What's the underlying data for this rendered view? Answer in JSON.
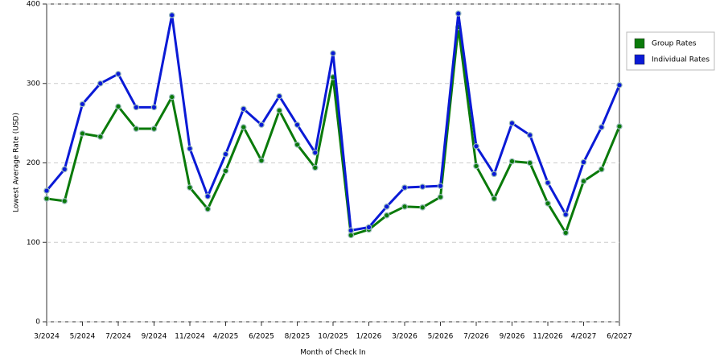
{
  "chart_data": {
    "type": "line",
    "x_label": "Month of Check In",
    "y_label": "Lowest Average Rate (USD)",
    "categories": [
      "3/2024",
      null,
      "5/2024",
      null,
      "7/2024",
      null,
      "9/2024",
      null,
      "11/2024",
      null,
      "4/2025",
      null,
      "6/2025",
      null,
      "8/2025",
      null,
      "10/2025",
      null,
      "1/2026",
      null,
      "3/2026",
      null,
      "5/2026",
      null,
      "7/2026",
      null,
      "9/2026",
      null,
      "11/2026",
      null,
      "4/2027",
      null,
      "6/2027"
    ],
    "series": [
      {
        "name": "Group Rates",
        "color": "#0a7a0a",
        "values": [
          155,
          152,
          237,
          233,
          271,
          243,
          243,
          283,
          169,
          142,
          190,
          245,
          203,
          266,
          223,
          194,
          308,
          109,
          116,
          134,
          145,
          144,
          157,
          371,
          196,
          155,
          202,
          200,
          149,
          112,
          177,
          192,
          246
        ]
      },
      {
        "name": "Individual Rates",
        "color": "#0a1ad6",
        "values": [
          165,
          192,
          274,
          300,
          312,
          270,
          270,
          386,
          218,
          158,
          211,
          268,
          248,
          284,
          248,
          213,
          338,
          115,
          119,
          145,
          169,
          170,
          171,
          388,
          221,
          186,
          250,
          235,
          175,
          135,
          201,
          245,
          298
        ]
      }
    ],
    "ylim": [
      0,
      400
    ],
    "yticks": [
      0,
      100,
      200,
      300,
      400
    ],
    "grid": true,
    "legend": "right"
  }
}
